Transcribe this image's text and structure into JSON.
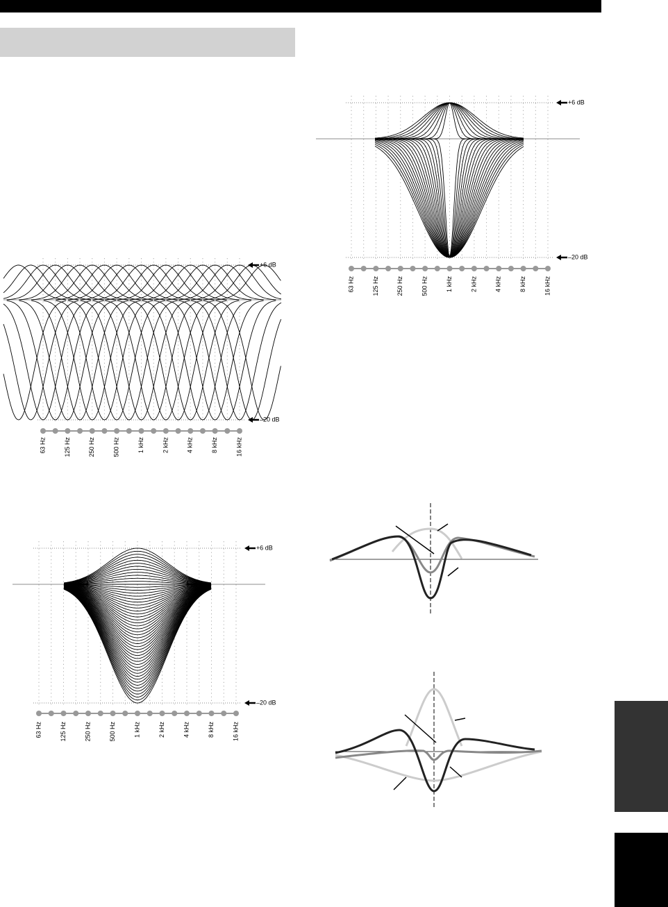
{
  "levels": {
    "top": "+6 dB",
    "bottom": "–20 dB"
  },
  "frequencies": [
    "63 Hz",
    "125 Hz",
    "250 Hz",
    "500 Hz",
    "1 kHz",
    "2 kHz",
    "4 kHz",
    "8 kHz",
    "16 kHz"
  ]
}
